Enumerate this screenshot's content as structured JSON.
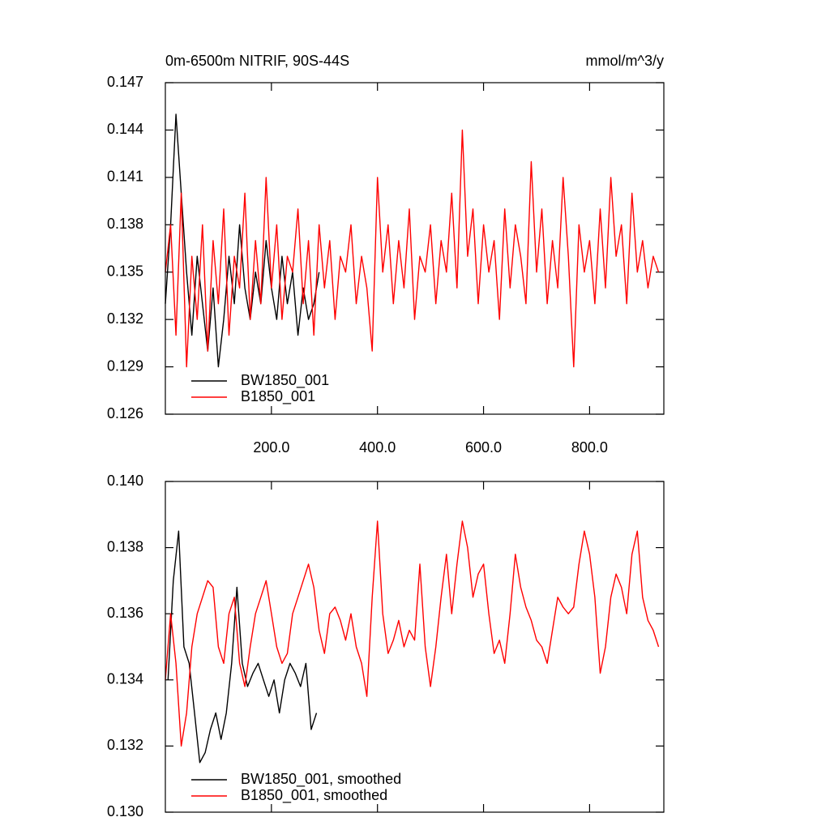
{
  "chart_data": [
    {
      "type": "line",
      "title": "0m-6500m NITRIF, 90S-44S",
      "subtitle": "mmol/m^3/y",
      "xlim": [
        0,
        940
      ],
      "ylim": [
        0.126,
        0.147
      ],
      "xticks": [
        {
          "value": 200,
          "label": "200.0"
        },
        {
          "value": 400,
          "label": "400.0"
        },
        {
          "value": 600,
          "label": "600.0"
        },
        {
          "value": 800,
          "label": "800.0"
        }
      ],
      "yticks": [
        0.126,
        0.129,
        0.132,
        0.135,
        0.138,
        0.141,
        0.144,
        0.147
      ],
      "series": [
        {
          "name": "BW1850_001",
          "color": "#000000",
          "x": [
            0,
            10,
            20,
            30,
            40,
            50,
            60,
            70,
            80,
            90,
            100,
            110,
            120,
            130,
            140,
            150,
            160,
            170,
            180,
            190,
            200,
            210,
            220,
            230,
            240,
            250,
            260,
            270,
            280,
            290
          ],
          "values": [
            0.133,
            0.138,
            0.145,
            0.14,
            0.135,
            0.131,
            0.136,
            0.133,
            0.13,
            0.134,
            0.129,
            0.132,
            0.136,
            0.133,
            0.138,
            0.134,
            0.132,
            0.135,
            0.133,
            0.137,
            0.134,
            0.132,
            0.136,
            0.133,
            0.135,
            0.131,
            0.134,
            0.132,
            0.133,
            0.135
          ]
        },
        {
          "name": "B1850_001",
          "color": "#ff0000",
          "x": [
            0,
            10,
            20,
            30,
            40,
            50,
            60,
            70,
            80,
            90,
            100,
            110,
            120,
            130,
            140,
            150,
            160,
            170,
            180,
            190,
            200,
            210,
            220,
            230,
            240,
            250,
            260,
            270,
            280,
            290,
            300,
            310,
            320,
            330,
            340,
            350,
            360,
            370,
            380,
            390,
            400,
            410,
            420,
            430,
            440,
            450,
            460,
            470,
            480,
            490,
            500,
            510,
            520,
            530,
            540,
            550,
            560,
            570,
            580,
            590,
            600,
            610,
            620,
            630,
            640,
            650,
            660,
            670,
            680,
            690,
            700,
            710,
            720,
            730,
            740,
            750,
            760,
            770,
            780,
            790,
            800,
            810,
            820,
            830,
            840,
            850,
            860,
            870,
            880,
            890,
            900,
            910,
            920,
            930
          ],
          "values": [
            0.135,
            0.138,
            0.131,
            0.14,
            0.129,
            0.136,
            0.132,
            0.138,
            0.13,
            0.137,
            0.133,
            0.139,
            0.131,
            0.136,
            0.134,
            0.14,
            0.132,
            0.137,
            0.133,
            0.141,
            0.134,
            0.138,
            0.132,
            0.136,
            0.135,
            0.139,
            0.133,
            0.137,
            0.131,
            0.138,
            0.134,
            0.137,
            0.132,
            0.136,
            0.135,
            0.138,
            0.133,
            0.136,
            0.134,
            0.13,
            0.141,
            0.135,
            0.138,
            0.133,
            0.137,
            0.134,
            0.139,
            0.132,
            0.136,
            0.135,
            0.138,
            0.133,
            0.137,
            0.135,
            0.14,
            0.134,
            0.144,
            0.136,
            0.139,
            0.133,
            0.138,
            0.135,
            0.137,
            0.132,
            0.139,
            0.134,
            0.138,
            0.136,
            0.133,
            0.142,
            0.135,
            0.139,
            0.133,
            0.137,
            0.134,
            0.141,
            0.136,
            0.129,
            0.138,
            0.135,
            0.137,
            0.133,
            0.139,
            0.134,
            0.141,
            0.136,
            0.138,
            0.133,
            0.14,
            0.135,
            0.137,
            0.134,
            0.136,
            0.135
          ]
        }
      ]
    },
    {
      "type": "line",
      "xlim": [
        0,
        940
      ],
      "ylim": [
        0.13,
        0.14
      ],
      "xticks": [
        200,
        400,
        600,
        800
      ],
      "yticks": [
        {
          "value": 0.13,
          "label": "0.130"
        },
        0.132,
        0.134,
        0.136,
        0.138,
        {
          "value": 0.14,
          "label": "0.140"
        }
      ],
      "series": [
        {
          "name": "BW1850_001, smoothed",
          "color": "#000000",
          "x": [
            5,
            15,
            25,
            35,
            45,
            55,
            65,
            75,
            85,
            95,
            105,
            115,
            125,
            135,
            145,
            155,
            165,
            175,
            185,
            195,
            205,
            215,
            225,
            235,
            245,
            255,
            265,
            275,
            285
          ],
          "values": [
            0.134,
            0.137,
            0.1385,
            0.135,
            0.1345,
            0.133,
            0.1315,
            0.1318,
            0.1325,
            0.133,
            0.1322,
            0.133,
            0.1345,
            0.1368,
            0.1345,
            0.1338,
            0.1342,
            0.1345,
            0.134,
            0.1335,
            0.134,
            0.133,
            0.134,
            0.1345,
            0.1342,
            0.1338,
            0.1345,
            0.1325,
            0.133
          ]
        },
        {
          "name": "B1850_001, smoothed",
          "color": "#ff0000",
          "x": [
            0,
            10,
            20,
            30,
            40,
            50,
            60,
            70,
            80,
            90,
            100,
            110,
            120,
            130,
            140,
            150,
            160,
            170,
            180,
            190,
            200,
            210,
            220,
            230,
            240,
            250,
            260,
            270,
            280,
            290,
            300,
            310,
            320,
            330,
            340,
            350,
            360,
            370,
            380,
            390,
            400,
            410,
            420,
            430,
            440,
            450,
            460,
            470,
            480,
            490,
            500,
            510,
            520,
            530,
            540,
            550,
            560,
            570,
            580,
            590,
            600,
            610,
            620,
            630,
            640,
            650,
            660,
            670,
            680,
            690,
            700,
            710,
            720,
            730,
            740,
            750,
            760,
            770,
            780,
            790,
            800,
            810,
            820,
            830,
            840,
            850,
            860,
            870,
            880,
            890,
            900,
            910,
            920,
            930
          ],
          "values": [
            0.134,
            0.136,
            0.1345,
            0.132,
            0.133,
            0.135,
            0.136,
            0.1365,
            0.137,
            0.1368,
            0.135,
            0.1345,
            0.136,
            0.1365,
            0.1345,
            0.1338,
            0.135,
            0.136,
            0.1365,
            0.137,
            0.136,
            0.135,
            0.1345,
            0.1348,
            0.136,
            0.1365,
            0.137,
            0.1375,
            0.1368,
            0.1355,
            0.1348,
            0.136,
            0.1362,
            0.1358,
            0.1352,
            0.136,
            0.135,
            0.1345,
            0.1335,
            0.1365,
            0.1388,
            0.136,
            0.1348,
            0.1352,
            0.1358,
            0.135,
            0.1355,
            0.1352,
            0.1375,
            0.135,
            0.1338,
            0.135,
            0.1365,
            0.1378,
            0.136,
            0.1375,
            0.1388,
            0.138,
            0.1365,
            0.1372,
            0.1375,
            0.136,
            0.1348,
            0.1352,
            0.1345,
            0.136,
            0.1378,
            0.1368,
            0.1362,
            0.1358,
            0.1352,
            0.135,
            0.1345,
            0.1355,
            0.1365,
            0.1362,
            0.136,
            0.1362,
            0.1375,
            0.1385,
            0.1378,
            0.1365,
            0.1342,
            0.135,
            0.1365,
            0.1372,
            0.1368,
            0.136,
            0.1378,
            0.1385,
            0.1365,
            0.1358,
            0.1355,
            0.135
          ]
        }
      ]
    }
  ]
}
